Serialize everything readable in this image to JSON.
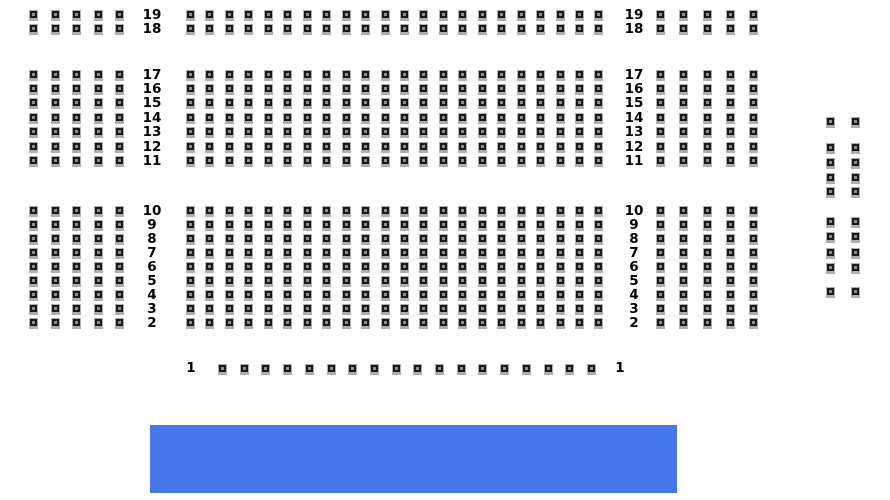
{
  "canvas": {
    "background": "#ffffff"
  },
  "stage": {
    "color": "#4576ea"
  },
  "seatmap": {
    "colors": {
      "seat_frame": "#adadad",
      "seat_dark": "#191919",
      "row_label": "#000000"
    },
    "row_groups": [
      {
        "id": "rear",
        "row_numbers": [
          "19",
          "18"
        ]
      },
      {
        "id": "middle",
        "row_numbers": [
          "17",
          "16",
          "15",
          "14",
          "13",
          "12",
          "11"
        ]
      },
      {
        "id": "front",
        "row_numbers": [
          "10",
          "9",
          "8",
          "7",
          "6",
          "5",
          "4",
          "3",
          "2"
        ]
      }
    ],
    "sections": {
      "left": {
        "seats_per_row": 5
      },
      "center": {
        "seats_per_row": 22
      },
      "right": {
        "seats_per_row": 5
      },
      "side": {
        "columns": 2,
        "row_groups": [
          1,
          4,
          4,
          1
        ]
      }
    },
    "front_row": {
      "row_number": "1",
      "seats": 18
    }
  }
}
